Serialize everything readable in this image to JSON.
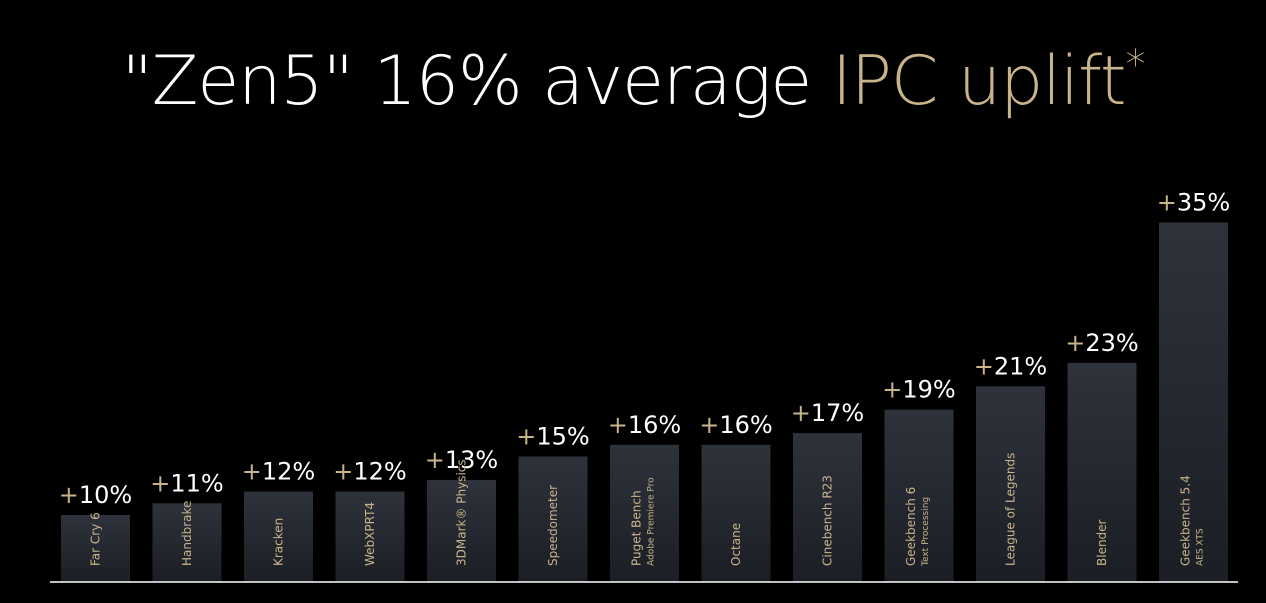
{
  "title": {
    "part_white": "\"Zen5\" 16% average",
    "part_gold": "IPC uplift",
    "asterisk": "*"
  },
  "colors": {
    "background": "#000000",
    "bar_top": "#2e323b",
    "bar_bottom": "#1b1e24",
    "value_plus": "#c9b48a",
    "value_text": "#ffffff",
    "bar_label": "#c9b48a",
    "baseline": "#ffffff"
  },
  "chart_data": {
    "type": "bar",
    "categories": [
      "Far Cry 6",
      "Handbrake",
      "Kracken",
      "WebXPRT4",
      "3DMark® Physics",
      "Speedometer",
      "Puget Bench",
      "Octane",
      "Cinebench R23",
      "Geekbench 6",
      "League of Legends",
      "Blender",
      "Geekbench 5.4"
    ],
    "sublabels": [
      "",
      "",
      "",
      "",
      "",
      "",
      "Adobe Premiere Pro",
      "",
      "",
      "Text Processing",
      "",
      "",
      "AES XTS"
    ],
    "values": [
      10,
      11,
      12,
      12,
      13,
      15,
      16,
      16,
      17,
      19,
      21,
      23,
      35
    ],
    "value_labels": [
      "+10%",
      "+11%",
      "+12%",
      "+12%",
      "+13%",
      "+15%",
      "+16%",
      "+16%",
      "+17%",
      "+19%",
      "+21%",
      "+23%",
      "+35%"
    ],
    "unit": "%",
    "ylim": [
      0,
      35
    ],
    "grid": false,
    "legend": "none"
  }
}
